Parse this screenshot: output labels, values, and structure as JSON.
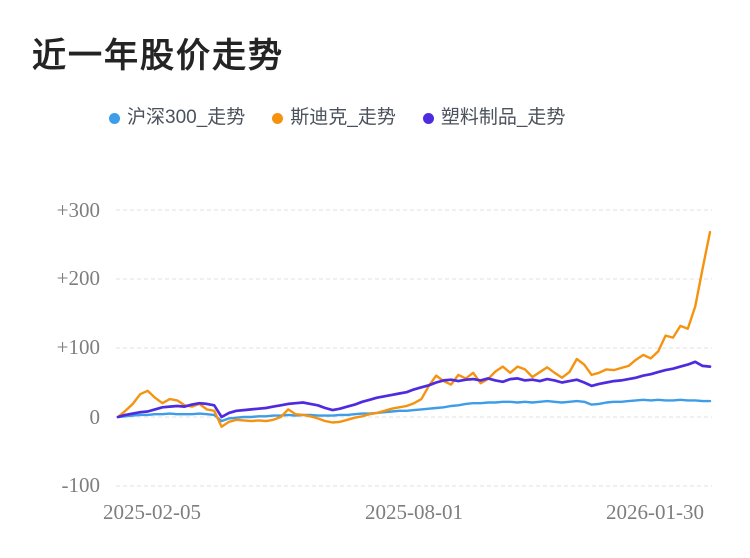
{
  "title": "近一年股价走势",
  "legend": {
    "items": [
      {
        "label": "沪深300_走势",
        "color": "#3d9de8"
      },
      {
        "label": "斯迪克_走势",
        "color": "#f59311"
      },
      {
        "label": "塑料制品_走势",
        "color": "#4f2be0"
      }
    ]
  },
  "chart_data": {
    "type": "line",
    "title": "近一年股价走势",
    "xlabel": "",
    "ylabel": "",
    "ylim": [
      -100,
      300
    ],
    "grid": "horizontal-dashed",
    "legend_position": "top",
    "x_tick_labels": [
      "2025-02-05",
      "2025-08-01",
      "2026-01-30"
    ],
    "y_ticks": [
      {
        "label": "+300",
        "value": 300
      },
      {
        "label": "+200",
        "value": 200
      },
      {
        "label": "+100",
        "value": 100
      },
      {
        "label": "0",
        "value": 0
      },
      {
        "label": "-100",
        "value": -100
      }
    ],
    "unit": "percent_change",
    "series": [
      {
        "name": "沪深300_走势",
        "color": "#3d9de8",
        "values": [
          0,
          1,
          2,
          3,
          3,
          4,
          4,
          5,
          4,
          4,
          4,
          5,
          4,
          3,
          -6,
          -2,
          -1,
          0,
          0,
          1,
          1,
          2,
          2,
          3,
          2,
          3,
          3,
          2,
          2,
          2,
          3,
          3,
          4,
          5,
          5,
          6,
          7,
          8,
          9,
          9,
          10,
          11,
          12,
          13,
          14,
          16,
          17,
          19,
          20,
          20,
          21,
          21,
          22,
          22,
          21,
          22,
          21,
          22,
          23,
          22,
          21,
          22,
          23,
          22,
          18,
          19,
          21,
          22,
          22,
          23,
          24,
          25,
          24,
          25,
          24,
          24,
          25,
          24,
          24,
          23,
          23
        ]
      },
      {
        "name": "斯迪克_走势",
        "color": "#f59311",
        "values": [
          0,
          9,
          19,
          33,
          38,
          28,
          20,
          26,
          24,
          17,
          15,
          19,
          11,
          9,
          -14,
          -7,
          -4,
          -5,
          -6,
          -5,
          -6,
          -4,
          0,
          11,
          4,
          3,
          1,
          -2,
          -6,
          -8,
          -7,
          -4,
          -1,
          1,
          4,
          6,
          9,
          12,
          14,
          16,
          20,
          26,
          45,
          60,
          52,
          47,
          61,
          56,
          64,
          49,
          55,
          66,
          73,
          64,
          73,
          69,
          58,
          65,
          72,
          64,
          57,
          65,
          84,
          76,
          61,
          64,
          69,
          68,
          71,
          74,
          83,
          90,
          85,
          95,
          118,
          115,
          132,
          128,
          160,
          215,
          268
        ]
      },
      {
        "name": "塑料制品_走势",
        "color": "#4f2be0",
        "values": [
          0,
          3,
          5,
          7,
          8,
          11,
          14,
          15,
          16,
          15,
          18,
          20,
          19,
          17,
          0,
          6,
          9,
          10,
          11,
          12,
          13,
          15,
          17,
          19,
          20,
          21,
          19,
          17,
          13,
          10,
          12,
          15,
          18,
          22,
          25,
          28,
          30,
          32,
          34,
          36,
          40,
          43,
          46,
          50,
          53,
          54,
          52,
          54,
          55,
          53,
          56,
          53,
          51,
          55,
          56,
          53,
          54,
          52,
          55,
          53,
          50,
          52,
          54,
          50,
          45,
          48,
          50,
          52,
          53,
          55,
          57,
          60,
          62,
          65,
          68,
          70,
          73,
          76,
          80,
          74,
          73
        ]
      }
    ]
  }
}
